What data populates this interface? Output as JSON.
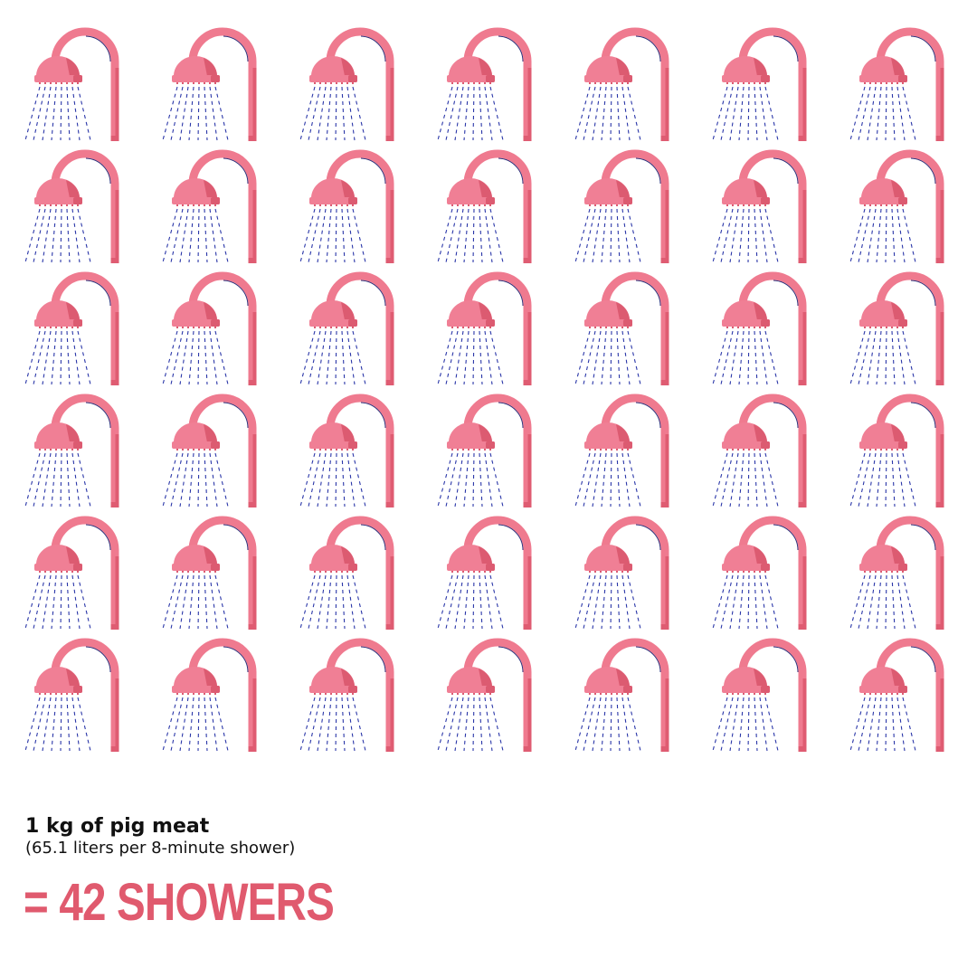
{
  "icon": "shower-icon",
  "shower_count": 42,
  "grid": {
    "rows": 6,
    "columns": 7
  },
  "colors": {
    "pipe": "#ef7a8f",
    "pipe_shade": "#df5c72",
    "head": "#f07f95",
    "head_shade": "#dc5b71",
    "outline": "#2a2f7a",
    "water": "#2a36a8",
    "result_text": "#e05a6e",
    "text": "#111111"
  },
  "caption": {
    "title": "1 kg of pig meat",
    "subtitle": "(65.1 liters per 8-minute shower)"
  },
  "result": "= 42 SHOWERS"
}
